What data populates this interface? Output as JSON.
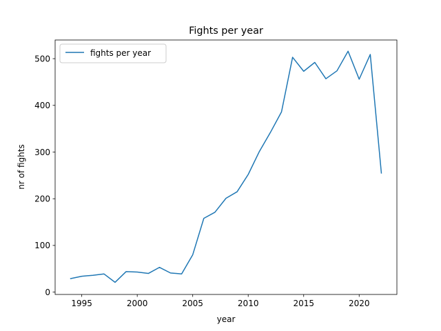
{
  "chart_data": {
    "type": "line",
    "title": "Fights per year",
    "xlabel": "year",
    "ylabel": "nr of fights",
    "xlim": [
      1992.6,
      2023.4
    ],
    "ylim": [
      -5,
      540
    ],
    "xticks": [
      1995,
      2000,
      2005,
      2010,
      2015,
      2020
    ],
    "yticks": [
      0,
      100,
      200,
      300,
      400,
      500
    ],
    "grid": false,
    "legend_position": "upper left",
    "series": [
      {
        "name": "fights per year",
        "color": "#1f77b4",
        "x": [
          1994,
          1995,
          1996,
          1997,
          1998,
          1999,
          2000,
          2001,
          2002,
          2003,
          2004,
          2005,
          2006,
          2007,
          2008,
          2009,
          2010,
          2011,
          2012,
          2013,
          2014,
          2015,
          2016,
          2017,
          2018,
          2019,
          2020,
          2021,
          2022
        ],
        "y": [
          29,
          34,
          36,
          39,
          21,
          44,
          43,
          40,
          53,
          41,
          39,
          80,
          158,
          171,
          201,
          215,
          252,
          301,
          342,
          386,
          503,
          473,
          492,
          457,
          474,
          516,
          456,
          509,
          255
        ]
      }
    ]
  }
}
